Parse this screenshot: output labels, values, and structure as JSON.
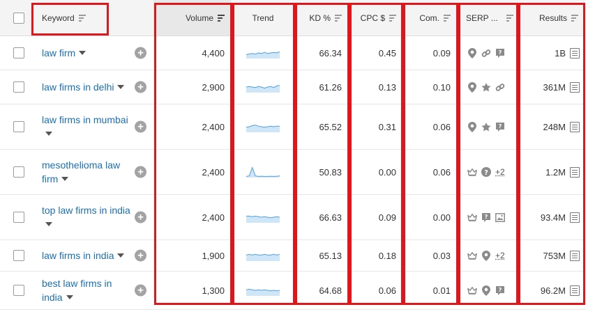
{
  "headers": {
    "keyword": "Keyword",
    "volume": "Volume",
    "trend": "Trend",
    "kd": "KD %",
    "cpc": "CPC $",
    "com": "Com.",
    "serp": "SERP ...",
    "results": "Results"
  },
  "rows": [
    {
      "keyword": "law firm",
      "volume": "4,400",
      "trend": [
        0.35,
        0.4,
        0.45,
        0.4,
        0.5,
        0.45,
        0.55,
        0.45,
        0.5,
        0.55,
        0.5,
        0.6
      ],
      "kd": "66.34",
      "cpc": "0.45",
      "com": "0.09",
      "serp": [
        "pin-icon",
        "link-icon",
        "review-icon"
      ],
      "serp_more": "",
      "results": "1B"
    },
    {
      "keyword": "law firms in delhi",
      "volume": "2,900",
      "trend": [
        0.5,
        0.55,
        0.5,
        0.45,
        0.55,
        0.5,
        0.4,
        0.5,
        0.55,
        0.45,
        0.6,
        0.65
      ],
      "kd": "61.26",
      "cpc": "0.13",
      "com": "0.10",
      "serp": [
        "pin-icon",
        "star-icon",
        "link-icon"
      ],
      "serp_more": "",
      "results": "361M"
    },
    {
      "keyword": "law firms in mumbai",
      "volume": "2,400",
      "trend": [
        0.45,
        0.5,
        0.6,
        0.65,
        0.55,
        0.5,
        0.45,
        0.5,
        0.55,
        0.5,
        0.55,
        0.55
      ],
      "kd": "65.52",
      "cpc": "0.31",
      "com": "0.06",
      "serp": [
        "pin-icon",
        "star-icon",
        "review-icon"
      ],
      "serp_more": "",
      "results": "248M"
    },
    {
      "keyword": "mesothelioma law firm",
      "volume": "2,400",
      "trend": [
        0.1,
        0.15,
        0.9,
        0.15,
        0.1,
        0.12,
        0.1,
        0.1,
        0.12,
        0.1,
        0.12,
        0.15
      ],
      "kd": "50.83",
      "cpc": "0.00",
      "com": "0.06",
      "serp": [
        "crown-icon",
        "question-icon"
      ],
      "serp_more": "+2",
      "results": "1.2M"
    },
    {
      "keyword": "top law firms in india",
      "volume": "2,400",
      "trend": [
        0.6,
        0.6,
        0.55,
        0.6,
        0.55,
        0.5,
        0.55,
        0.5,
        0.45,
        0.5,
        0.55,
        0.5
      ],
      "kd": "66.63",
      "cpc": "0.09",
      "com": "0.00",
      "serp": [
        "crown-icon",
        "review-icon",
        "image-icon"
      ],
      "serp_more": "",
      "results": "93.4M"
    },
    {
      "keyword": "law firms in india",
      "volume": "1,900",
      "trend": [
        0.55,
        0.6,
        0.55,
        0.6,
        0.55,
        0.55,
        0.6,
        0.55,
        0.55,
        0.6,
        0.55,
        0.6
      ],
      "kd": "65.13",
      "cpc": "0.18",
      "com": "0.03",
      "serp": [
        "crown-icon",
        "pin-icon"
      ],
      "serp_more": "+2",
      "results": "753M"
    },
    {
      "keyword": "best law firms in india",
      "volume": "1,300",
      "trend": [
        0.55,
        0.6,
        0.55,
        0.5,
        0.55,
        0.5,
        0.55,
        0.5,
        0.45,
        0.5,
        0.45,
        0.5
      ],
      "kd": "64.68",
      "cpc": "0.06",
      "com": "0.01",
      "serp": [
        "crown-icon",
        "pin-icon",
        "review-icon"
      ],
      "serp_more": "",
      "results": "96.2M"
    }
  ],
  "colors": {
    "link": "#1a6fb5",
    "highlight": "#e0161d",
    "trend_line": "#4fa0e0",
    "trend_fill": "#cfe6f8"
  }
}
